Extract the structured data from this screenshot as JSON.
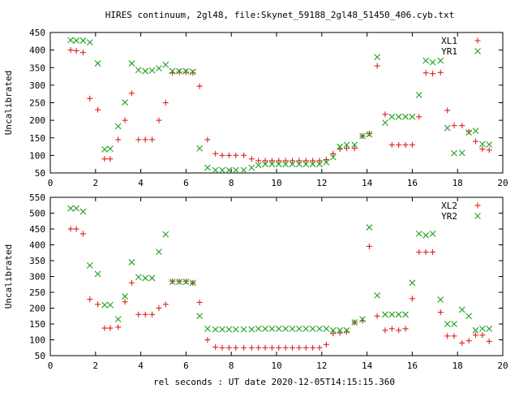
{
  "title": "HIRES continuum, 2gl48, file:Skynet_59188_2gl48_51450_406.cyb.txt",
  "xlabel": "rel seconds : UT date 2020-12-05T14:15:15.360",
  "colors": {
    "series1": "#e0201f",
    "series2": "#1ea01e",
    "axis": "#000000"
  },
  "chart_data": [
    {
      "type": "scatter",
      "ylabel": "Uncalibrated",
      "xlim": [
        0,
        20
      ],
      "ylim": [
        50,
        450
      ],
      "xticks": [
        0,
        2,
        4,
        6,
        8,
        10,
        12,
        14,
        16,
        18,
        20
      ],
      "yticks": [
        50,
        100,
        150,
        200,
        250,
        300,
        350,
        400,
        450
      ],
      "legend_position": "top-right",
      "x": [
        0.9,
        1.15,
        1.45,
        1.75,
        2.1,
        2.4,
        2.65,
        3.0,
        3.3,
        3.6,
        3.9,
        4.2,
        4.5,
        4.8,
        5.1,
        5.4,
        5.7,
        6.0,
        6.3,
        6.6,
        6.95,
        7.3,
        7.6,
        7.9,
        8.2,
        8.55,
        8.9,
        9.2,
        9.5,
        9.8,
        10.1,
        10.4,
        10.7,
        11.0,
        11.3,
        11.6,
        11.9,
        12.2,
        12.5,
        12.8,
        13.1,
        13.45,
        13.8,
        14.1,
        14.45,
        14.8,
        15.1,
        15.4,
        15.7,
        16.0,
        16.3,
        16.6,
        16.9,
        17.25,
        17.55,
        17.85,
        18.2,
        18.5,
        18.8,
        19.1,
        19.4
      ],
      "series": [
        {
          "name": "XL1",
          "marker": "plus",
          "values": [
            400,
            398,
            393,
            262,
            230,
            90,
            90,
            145,
            200,
            277,
            145,
            145,
            145,
            200,
            250,
            335,
            337,
            337,
            335,
            297,
            145,
            105,
            100,
            100,
            100,
            100,
            90,
            85,
            85,
            85,
            85,
            85,
            85,
            85,
            85,
            85,
            85,
            88,
            105,
            118,
            120,
            120,
            155,
            162,
            355,
            217,
            130,
            130,
            130,
            130,
            210,
            335,
            333,
            336,
            228,
            185,
            185,
            168,
            140,
            118,
            115
          ]
        },
        {
          "name": "YR1",
          "marker": "cross",
          "values": [
            428,
            427,
            427,
            422,
            362,
            117,
            119,
            183,
            251,
            362,
            343,
            340,
            342,
            348,
            358,
            340,
            340,
            340,
            338,
            120,
            65,
            58,
            58,
            58,
            58,
            58,
            65,
            72,
            75,
            75,
            75,
            75,
            75,
            75,
            75,
            75,
            75,
            80,
            95,
            125,
            130,
            130,
            155,
            160,
            380,
            193,
            210,
            210,
            210,
            210,
            272,
            370,
            365,
            370,
            178,
            106,
            107,
            165,
            170,
            132,
            131
          ]
        }
      ]
    },
    {
      "type": "scatter",
      "ylabel": "Uncalibrated",
      "xlim": [
        0,
        20
      ],
      "ylim": [
        50,
        550
      ],
      "xticks": [
        0,
        2,
        4,
        6,
        8,
        10,
        12,
        14,
        16,
        18,
        20
      ],
      "yticks": [
        50,
        100,
        150,
        200,
        250,
        300,
        350,
        400,
        450,
        500,
        550
      ],
      "legend_position": "top-right",
      "x": [
        0.9,
        1.15,
        1.45,
        1.75,
        2.1,
        2.4,
        2.65,
        3.0,
        3.3,
        3.6,
        3.9,
        4.2,
        4.5,
        4.8,
        5.1,
        5.4,
        5.7,
        6.0,
        6.3,
        6.6,
        6.95,
        7.3,
        7.6,
        7.9,
        8.2,
        8.55,
        8.9,
        9.2,
        9.5,
        9.8,
        10.1,
        10.4,
        10.7,
        11.0,
        11.3,
        11.6,
        11.9,
        12.2,
        12.5,
        12.8,
        13.1,
        13.45,
        13.8,
        14.1,
        14.45,
        14.8,
        15.1,
        15.4,
        15.7,
        16.0,
        16.3,
        16.6,
        16.9,
        17.25,
        17.55,
        17.85,
        18.2,
        18.5,
        18.8,
        19.1,
        19.4
      ],
      "series": [
        {
          "name": "XL2",
          "marker": "plus",
          "values": [
            450,
            450,
            435,
            228,
            212,
            137,
            137,
            140,
            220,
            280,
            180,
            180,
            180,
            200,
            212,
            285,
            285,
            285,
            280,
            218,
            100,
            77,
            75,
            75,
            75,
            75,
            75,
            75,
            75,
            75,
            75,
            75,
            75,
            75,
            75,
            75,
            75,
            85,
            120,
            122,
            125,
            155,
            160,
            395,
            175,
            130,
            135,
            130,
            135,
            230,
            377,
            377,
            377,
            187,
            112,
            112,
            90,
            97,
            115,
            115,
            95
          ]
        },
        {
          "name": "YR2",
          "marker": "cross",
          "values": [
            515,
            515,
            505,
            335,
            308,
            210,
            210,
            165,
            237,
            345,
            298,
            295,
            295,
            378,
            433,
            283,
            283,
            283,
            280,
            175,
            135,
            133,
            133,
            133,
            133,
            133,
            133,
            135,
            135,
            135,
            135,
            135,
            135,
            135,
            135,
            135,
            135,
            135,
            130,
            130,
            130,
            155,
            165,
            455,
            240,
            180,
            180,
            180,
            180,
            280,
            435,
            430,
            435,
            227,
            150,
            150,
            195,
            175,
            130,
            135,
            135
          ]
        }
      ]
    }
  ]
}
